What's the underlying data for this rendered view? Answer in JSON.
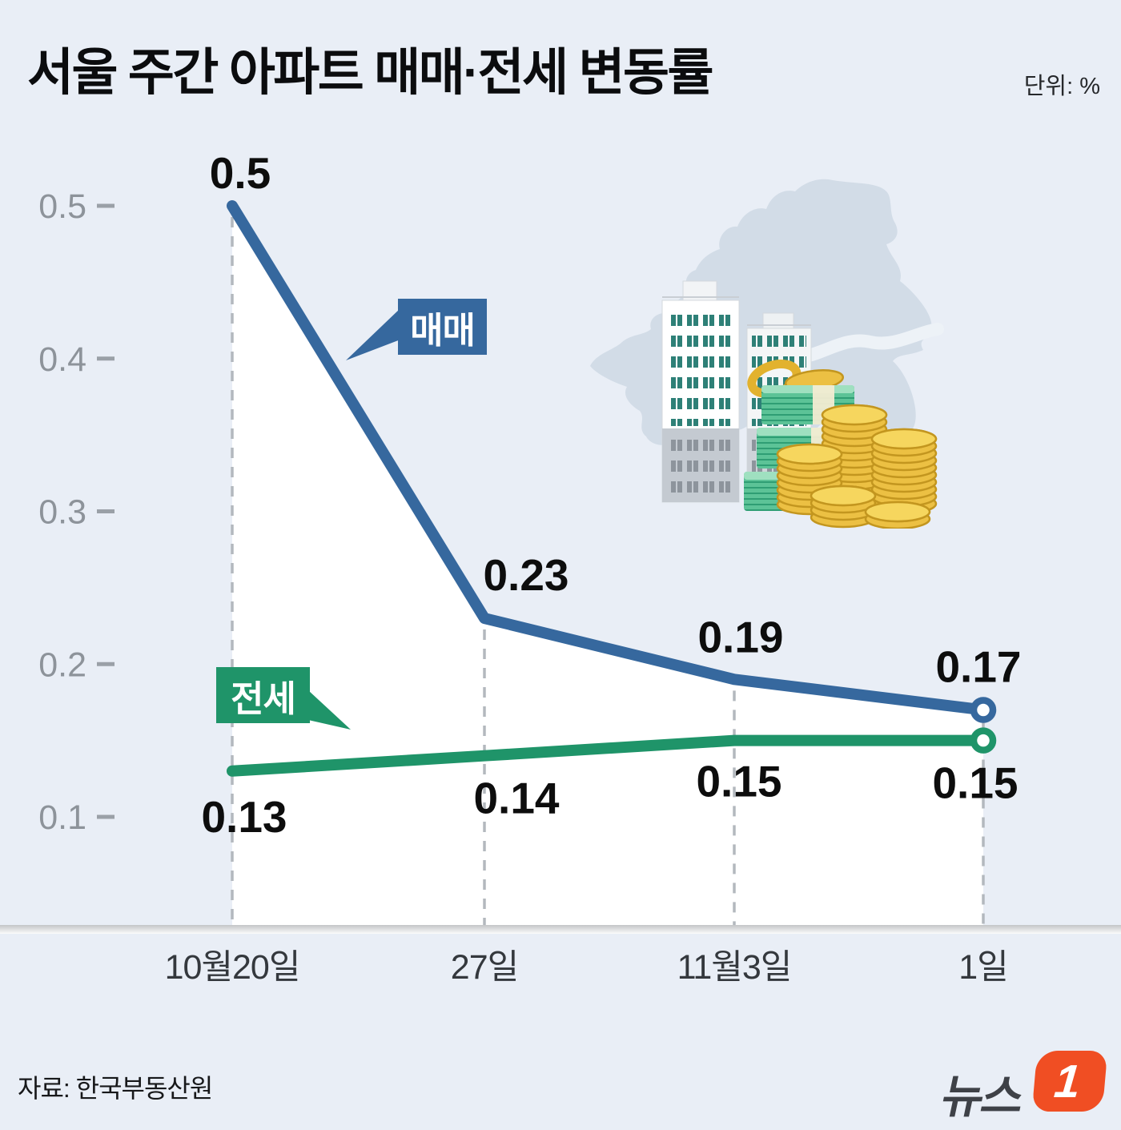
{
  "title": "서울 주간 아파트 매매·전세 변동률",
  "unit_label": "단위: %",
  "source": "자료: 한국부동산원",
  "logo": {
    "text": "뉴스",
    "badge": "1",
    "badge_color": "#f04e23"
  },
  "chart_data": {
    "type": "line",
    "categories": [
      "10월20일",
      "27일",
      "11월3일",
      "1일"
    ],
    "series": [
      {
        "name": "매매",
        "color": "#36689e",
        "values": [
          0.5,
          0.23,
          0.19,
          0.17
        ]
      },
      {
        "name": "전세",
        "color": "#1f9469",
        "values": [
          0.13,
          0.14,
          0.15,
          0.15
        ]
      }
    ],
    "yticks": [
      0.5,
      0.4,
      0.3,
      0.2,
      0.1
    ],
    "ylim": [
      0,
      0.55
    ],
    "xlabel": "",
    "ylabel": "",
    "grid": "vertical-dashed",
    "legend": "inline-callouts",
    "end_markers": "open-circle",
    "area_fill": "#ffffff"
  }
}
